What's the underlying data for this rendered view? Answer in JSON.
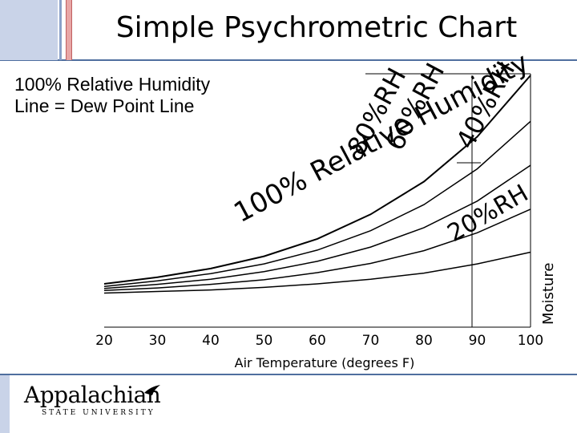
{
  "title": "Simple Psychrometric Chart",
  "note": "100% Relative Humidity Line = Dew Point Line",
  "logo": {
    "name": "Appalachian",
    "subtitle": "STATE UNIVERSITY"
  },
  "chart_data": {
    "type": "line",
    "xlabel": "Air Temperature (degrees F)",
    "ylabel": "Moisture",
    "x_ticks": [
      20,
      30,
      40,
      50,
      60,
      70,
      80,
      90,
      100
    ],
    "xlim": [
      20,
      100
    ],
    "grid": false,
    "reference_line_x": 90,
    "series": [
      {
        "name": "100% Relative Humidity",
        "x": [
          20,
          30,
          40,
          50,
          60,
          70,
          80,
          90,
          100
        ],
        "y": [
          0.0022,
          0.0035,
          0.0052,
          0.0076,
          0.011,
          0.0158,
          0.0222,
          0.031,
          0.043
        ]
      },
      {
        "name": "80%RH",
        "x": [
          20,
          30,
          40,
          50,
          60,
          70,
          80,
          90,
          100
        ],
        "y": [
          0.0017,
          0.0028,
          0.0042,
          0.0061,
          0.0088,
          0.0126,
          0.0177,
          0.0247,
          0.034
        ]
      },
      {
        "name": "60%RH",
        "x": [
          20,
          30,
          40,
          50,
          60,
          70,
          80,
          90,
          100
        ],
        "y": [
          0.0013,
          0.0021,
          0.0031,
          0.0046,
          0.0066,
          0.0094,
          0.0132,
          0.0184,
          0.0254
        ]
      },
      {
        "name": "40%RH",
        "x": [
          20,
          30,
          40,
          50,
          60,
          70,
          80,
          90,
          100
        ],
        "y": [
          0.0009,
          0.0014,
          0.0021,
          0.003,
          0.0044,
          0.0062,
          0.0087,
          0.0122,
          0.0168
        ]
      },
      {
        "name": "20%RH",
        "x": [
          20,
          30,
          40,
          50,
          60,
          70,
          80,
          90,
          100
        ],
        "y": [
          0.0004,
          0.0007,
          0.001,
          0.0015,
          0.0022,
          0.0031,
          0.0043,
          0.0061,
          0.0084
        ]
      }
    ],
    "curve_labels": [
      "100% Relative Humidity",
      "80%RH",
      "60%RH",
      "40%RH",
      "20%RH"
    ]
  }
}
